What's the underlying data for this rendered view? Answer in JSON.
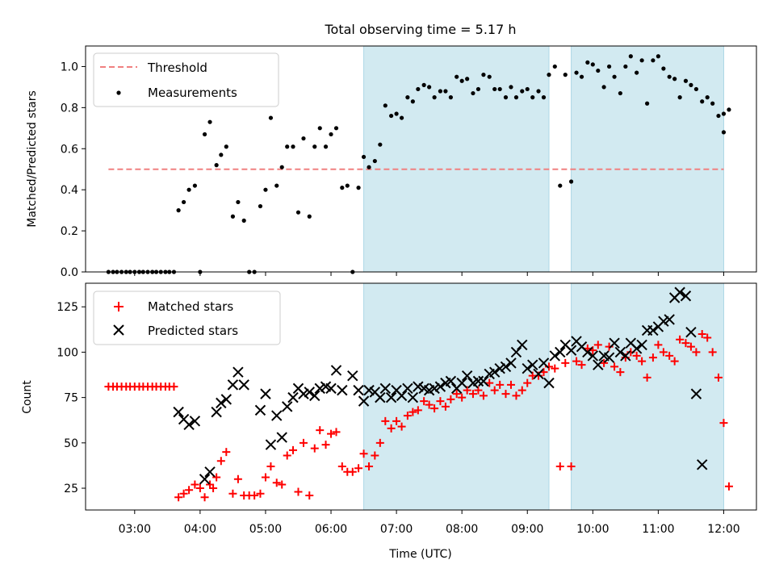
{
  "title": "Total observing time = 5.17 h",
  "colors": {
    "measurement": "#000000",
    "threshold": "#f08080",
    "matched": "#ff0000",
    "predicted": "#000000",
    "shade": "#add8e6"
  },
  "chart_data": [
    {
      "type": "scatter",
      "ylabel": "Matched/Predicted stars",
      "xlim": [
        2.25,
        12.5
      ],
      "ylim": [
        0,
        1.1
      ],
      "yticks": [
        0.0,
        0.2,
        0.4,
        0.6,
        0.8,
        1.0
      ],
      "ytick_labels": [
        "0.0",
        "0.2",
        "0.4",
        "0.6",
        "0.8",
        "1.0"
      ],
      "legend": {
        "placement": "upper left",
        "threshold_label": "Threshold",
        "measurements_label": "Measurements"
      },
      "threshold": {
        "y": 0.5,
        "x": [
          2.6,
          12.0
        ]
      },
      "shaded_spans": [
        [
          6.5,
          9.33
        ],
        [
          9.67,
          12.0
        ]
      ],
      "measurements": [
        [
          2.6,
          0
        ],
        [
          2.67,
          0
        ],
        [
          2.73,
          0
        ],
        [
          2.8,
          0
        ],
        [
          2.87,
          0
        ],
        [
          2.93,
          0
        ],
        [
          3.0,
          0
        ],
        [
          3.07,
          0
        ],
        [
          3.13,
          0
        ],
        [
          3.2,
          0
        ],
        [
          3.27,
          0
        ],
        [
          3.33,
          0
        ],
        [
          3.4,
          0
        ],
        [
          3.47,
          0
        ],
        [
          3.53,
          0
        ],
        [
          3.6,
          0
        ],
        [
          3.67,
          0.3
        ],
        [
          3.75,
          0.34
        ],
        [
          3.83,
          0.4
        ],
        [
          3.92,
          0.42
        ],
        [
          4.0,
          0.0
        ],
        [
          4.07,
          0.67
        ],
        [
          4.15,
          0.73
        ],
        [
          4.25,
          0.52
        ],
        [
          4.32,
          0.57
        ],
        [
          4.4,
          0.61
        ],
        [
          4.5,
          0.27
        ],
        [
          4.58,
          0.34
        ],
        [
          4.67,
          0.25
        ],
        [
          4.75,
          0.0
        ],
        [
          4.83,
          0.0
        ],
        [
          4.92,
          0.32
        ],
        [
          5.0,
          0.4
        ],
        [
          5.08,
          0.75
        ],
        [
          5.17,
          0.42
        ],
        [
          5.25,
          0.51
        ],
        [
          5.33,
          0.61
        ],
        [
          5.42,
          0.61
        ],
        [
          5.5,
          0.29
        ],
        [
          5.58,
          0.65
        ],
        [
          5.67,
          0.27
        ],
        [
          5.75,
          0.61
        ],
        [
          5.83,
          0.7
        ],
        [
          5.92,
          0.61
        ],
        [
          6.0,
          0.67
        ],
        [
          6.08,
          0.7
        ],
        [
          6.17,
          0.41
        ],
        [
          6.25,
          0.42
        ],
        [
          6.33,
          0.0
        ],
        [
          6.42,
          0.41
        ],
        [
          6.5,
          0.56
        ],
        [
          6.58,
          0.51
        ],
        [
          6.67,
          0.54
        ],
        [
          6.75,
          0.62
        ],
        [
          6.83,
          0.81
        ],
        [
          6.92,
          0.76
        ],
        [
          7.0,
          0.77
        ],
        [
          7.08,
          0.75
        ],
        [
          7.17,
          0.85
        ],
        [
          7.25,
          0.83
        ],
        [
          7.33,
          0.89
        ],
        [
          7.42,
          0.91
        ],
        [
          7.5,
          0.9
        ],
        [
          7.58,
          0.85
        ],
        [
          7.67,
          0.88
        ],
        [
          7.75,
          0.88
        ],
        [
          7.83,
          0.85
        ],
        [
          7.92,
          0.95
        ],
        [
          8.0,
          0.93
        ],
        [
          8.08,
          0.94
        ],
        [
          8.17,
          0.87
        ],
        [
          8.25,
          0.89
        ],
        [
          8.33,
          0.96
        ],
        [
          8.42,
          0.95
        ],
        [
          8.5,
          0.89
        ],
        [
          8.58,
          0.89
        ],
        [
          8.67,
          0.85
        ],
        [
          8.75,
          0.9
        ],
        [
          8.83,
          0.85
        ],
        [
          8.92,
          0.88
        ],
        [
          9.0,
          0.89
        ],
        [
          9.08,
          0.85
        ],
        [
          9.17,
          0.88
        ],
        [
          9.25,
          0.85
        ],
        [
          9.33,
          0.96
        ],
        [
          9.42,
          1.0
        ],
        [
          9.5,
          0.42
        ],
        [
          9.58,
          0.96
        ],
        [
          9.67,
          0.44
        ],
        [
          9.75,
          0.97
        ],
        [
          9.83,
          0.95
        ],
        [
          9.92,
          1.02
        ],
        [
          10.0,
          1.01
        ],
        [
          10.08,
          0.98
        ],
        [
          10.17,
          0.9
        ],
        [
          10.25,
          1.0
        ],
        [
          10.33,
          0.95
        ],
        [
          10.42,
          0.87
        ],
        [
          10.5,
          1.0
        ],
        [
          10.58,
          1.05
        ],
        [
          10.67,
          0.97
        ],
        [
          10.75,
          1.03
        ],
        [
          10.83,
          0.82
        ],
        [
          10.92,
          1.03
        ],
        [
          11.0,
          1.05
        ],
        [
          11.08,
          0.99
        ],
        [
          11.17,
          0.95
        ],
        [
          11.25,
          0.94
        ],
        [
          11.33,
          0.85
        ],
        [
          11.42,
          0.93
        ],
        [
          11.5,
          0.91
        ],
        [
          11.58,
          0.89
        ],
        [
          11.67,
          0.83
        ],
        [
          11.75,
          0.85
        ],
        [
          11.83,
          0.82
        ],
        [
          11.92,
          0.76
        ],
        [
          12.0,
          0.77
        ],
        [
          12.08,
          0.79
        ],
        [
          12.0,
          0.68
        ]
      ]
    },
    {
      "type": "scatter",
      "xlabel": "Time (UTC)",
      "ylabel": "Count",
      "xlim": [
        2.25,
        12.5
      ],
      "ylim": [
        13,
        138
      ],
      "xticks": [
        3,
        4,
        5,
        6,
        7,
        8,
        9,
        10,
        11,
        12
      ],
      "xtick_labels": [
        "03:00",
        "04:00",
        "05:00",
        "06:00",
        "07:00",
        "08:00",
        "09:00",
        "10:00",
        "11:00",
        "12:00"
      ],
      "yticks": [
        25,
        50,
        75,
        100,
        125
      ],
      "ytick_labels": [
        "25",
        "50",
        "75",
        "100",
        "125"
      ],
      "legend": {
        "placement": "upper left",
        "matched_label": "Matched stars",
        "predicted_label": "Predicted stars"
      },
      "shaded_spans": [
        [
          6.5,
          9.33
        ],
        [
          9.67,
          12.0
        ]
      ],
      "matched": [
        [
          2.6,
          81
        ],
        [
          2.67,
          81
        ],
        [
          2.73,
          81
        ],
        [
          2.8,
          81
        ],
        [
          2.87,
          81
        ],
        [
          2.93,
          81
        ],
        [
          3.0,
          81
        ],
        [
          3.07,
          81
        ],
        [
          3.13,
          81
        ],
        [
          3.2,
          81
        ],
        [
          3.27,
          81
        ],
        [
          3.33,
          81
        ],
        [
          3.4,
          81
        ],
        [
          3.47,
          81
        ],
        [
          3.53,
          81
        ],
        [
          3.6,
          81
        ],
        [
          3.67,
          20
        ],
        [
          3.75,
          22
        ],
        [
          3.83,
          24
        ],
        [
          3.92,
          27
        ],
        [
          4.0,
          25
        ],
        [
          4.07,
          20
        ],
        [
          4.15,
          27
        ],
        [
          4.2,
          25
        ],
        [
          4.25,
          31
        ],
        [
          4.32,
          40
        ],
        [
          4.4,
          45
        ],
        [
          4.5,
          22
        ],
        [
          4.58,
          30
        ],
        [
          4.67,
          21
        ],
        [
          4.75,
          21
        ],
        [
          4.83,
          21
        ],
        [
          4.92,
          22
        ],
        [
          5.0,
          31
        ],
        [
          5.08,
          37
        ],
        [
          5.17,
          28
        ],
        [
          5.25,
          27
        ],
        [
          5.33,
          43
        ],
        [
          5.42,
          46
        ],
        [
          5.5,
          23
        ],
        [
          5.58,
          50
        ],
        [
          5.67,
          21
        ],
        [
          5.75,
          47
        ],
        [
          5.83,
          57
        ],
        [
          5.92,
          49
        ],
        [
          6.0,
          55
        ],
        [
          6.08,
          56
        ],
        [
          6.17,
          37
        ],
        [
          6.25,
          34
        ],
        [
          6.33,
          34
        ],
        [
          6.42,
          36
        ],
        [
          6.5,
          44
        ],
        [
          6.58,
          37
        ],
        [
          6.67,
          43
        ],
        [
          6.75,
          50
        ],
        [
          6.83,
          62
        ],
        [
          6.92,
          58
        ],
        [
          7.0,
          62
        ],
        [
          7.08,
          59
        ],
        [
          7.17,
          65
        ],
        [
          7.25,
          67
        ],
        [
          7.33,
          68
        ],
        [
          7.42,
          73
        ],
        [
          7.5,
          71
        ],
        [
          7.58,
          69
        ],
        [
          7.67,
          73
        ],
        [
          7.75,
          70
        ],
        [
          7.83,
          74
        ],
        [
          7.92,
          77
        ],
        [
          8.0,
          75
        ],
        [
          8.08,
          79
        ],
        [
          8.17,
          77
        ],
        [
          8.25,
          79
        ],
        [
          8.33,
          76
        ],
        [
          8.42,
          83
        ],
        [
          8.5,
          79
        ],
        [
          8.58,
          82
        ],
        [
          8.67,
          77
        ],
        [
          8.75,
          82
        ],
        [
          8.83,
          76
        ],
        [
          8.92,
          79
        ],
        [
          9.0,
          83
        ],
        [
          9.08,
          87
        ],
        [
          9.17,
          87
        ],
        [
          9.25,
          89
        ],
        [
          9.33,
          92
        ],
        [
          9.42,
          91
        ],
        [
          9.5,
          37
        ],
        [
          9.58,
          94
        ],
        [
          9.67,
          37
        ],
        [
          9.75,
          95
        ],
        [
          9.83,
          93
        ],
        [
          9.92,
          102
        ],
        [
          10.0,
          101
        ],
        [
          10.08,
          104
        ],
        [
          10.17,
          94
        ],
        [
          10.25,
          103
        ],
        [
          10.33,
          92
        ],
        [
          10.42,
          89
        ],
        [
          10.5,
          97
        ],
        [
          10.58,
          100
        ],
        [
          10.67,
          98
        ],
        [
          10.75,
          95
        ],
        [
          10.83,
          86
        ],
        [
          10.92,
          97
        ],
        [
          11.0,
          104
        ],
        [
          11.08,
          100
        ],
        [
          11.17,
          98
        ],
        [
          11.25,
          95
        ],
        [
          11.33,
          107
        ],
        [
          11.42,
          105
        ],
        [
          11.5,
          103
        ],
        [
          11.58,
          100
        ],
        [
          11.67,
          110
        ],
        [
          11.75,
          108
        ],
        [
          11.83,
          100
        ],
        [
          11.92,
          86
        ],
        [
          12.0,
          61
        ],
        [
          12.08,
          26
        ]
      ],
      "predicted": [
        [
          3.67,
          67
        ],
        [
          3.75,
          63
        ],
        [
          3.83,
          60
        ],
        [
          3.92,
          62
        ],
        [
          4.07,
          30
        ],
        [
          4.15,
          34
        ],
        [
          4.25,
          67
        ],
        [
          4.32,
          72
        ],
        [
          4.4,
          74
        ],
        [
          4.5,
          82
        ],
        [
          4.58,
          89
        ],
        [
          4.67,
          82
        ],
        [
          4.92,
          68
        ],
        [
          5.0,
          77
        ],
        [
          5.08,
          49
        ],
        [
          5.17,
          65
        ],
        [
          5.25,
          53
        ],
        [
          5.33,
          70
        ],
        [
          5.42,
          75
        ],
        [
          5.5,
          80
        ],
        [
          5.58,
          77
        ],
        [
          5.67,
          78
        ],
        [
          5.75,
          76
        ],
        [
          5.83,
          80
        ],
        [
          5.92,
          81
        ],
        [
          6.0,
          80
        ],
        [
          6.08,
          90
        ],
        [
          6.17,
          79
        ],
        [
          6.33,
          87
        ],
        [
          6.42,
          79
        ],
        [
          6.5,
          73
        ],
        [
          6.58,
          79
        ],
        [
          6.67,
          78
        ],
        [
          6.75,
          75
        ],
        [
          6.83,
          80
        ],
        [
          6.92,
          75
        ],
        [
          7.0,
          79
        ],
        [
          7.08,
          76
        ],
        [
          7.17,
          80
        ],
        [
          7.25,
          75
        ],
        [
          7.33,
          81
        ],
        [
          7.42,
          80
        ],
        [
          7.5,
          79
        ],
        [
          7.58,
          80
        ],
        [
          7.67,
          81
        ],
        [
          7.75,
          83
        ],
        [
          7.83,
          84
        ],
        [
          7.92,
          80
        ],
        [
          8.0,
          83
        ],
        [
          8.08,
          87
        ],
        [
          8.17,
          83
        ],
        [
          8.25,
          84
        ],
        [
          8.33,
          84
        ],
        [
          8.42,
          88
        ],
        [
          8.5,
          89
        ],
        [
          8.58,
          91
        ],
        [
          8.67,
          92
        ],
        [
          8.75,
          94
        ],
        [
          8.83,
          100
        ],
        [
          8.92,
          104
        ],
        [
          9.0,
          91
        ],
        [
          9.08,
          93
        ],
        [
          9.17,
          88
        ],
        [
          9.25,
          94
        ],
        [
          9.33,
          83
        ],
        [
          9.42,
          98
        ],
        [
          9.5,
          100
        ],
        [
          9.58,
          104
        ],
        [
          9.67,
          101
        ],
        [
          9.75,
          106
        ],
        [
          9.83,
          103
        ],
        [
          9.92,
          100
        ],
        [
          10.0,
          98
        ],
        [
          10.08,
          93
        ],
        [
          10.17,
          98
        ],
        [
          10.25,
          97
        ],
        [
          10.33,
          105
        ],
        [
          10.42,
          100
        ],
        [
          10.5,
          98
        ],
        [
          10.58,
          105
        ],
        [
          10.67,
          102
        ],
        [
          10.75,
          104
        ],
        [
          10.83,
          112
        ],
        [
          10.92,
          112
        ],
        [
          11.0,
          114
        ],
        [
          11.08,
          117
        ],
        [
          11.17,
          118
        ],
        [
          11.25,
          130
        ],
        [
          11.33,
          133
        ],
        [
          11.42,
          131
        ],
        [
          11.5,
          111
        ],
        [
          11.58,
          77
        ],
        [
          11.67,
          38
        ]
      ]
    }
  ]
}
